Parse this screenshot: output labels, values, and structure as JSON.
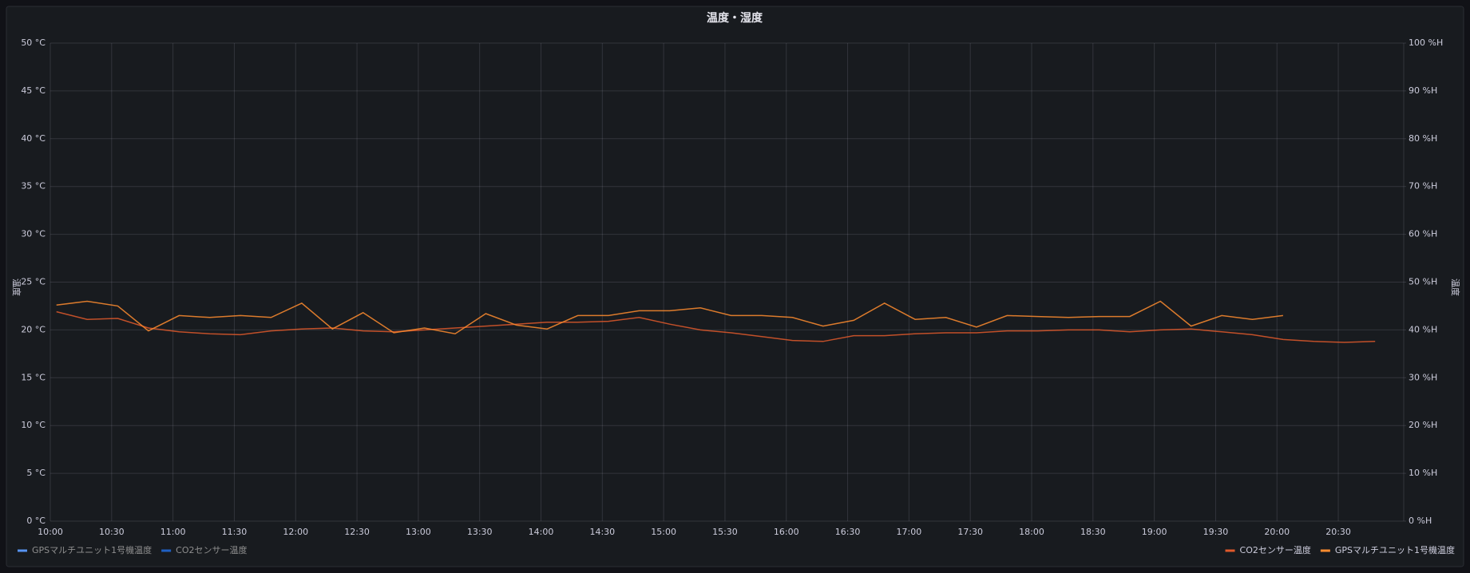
{
  "chart_data": {
    "type": "line",
    "title": "温度・湿度",
    "y_label": "温度",
    "y2_label": "温度",
    "x": [
      "10:03",
      "10:18",
      "10:33",
      "10:48",
      "11:03",
      "11:18",
      "11:33",
      "11:48",
      "12:03",
      "12:18",
      "12:33",
      "12:48",
      "13:03",
      "13:18",
      "13:33",
      "13:48",
      "14:03",
      "14:18",
      "14:33",
      "14:48",
      "15:03",
      "15:18",
      "15:33",
      "15:48",
      "16:03",
      "16:18",
      "16:33",
      "16:48",
      "17:03",
      "17:18",
      "17:33",
      "17:48",
      "18:03",
      "18:18",
      "18:33",
      "18:48",
      "19:03",
      "19:18",
      "19:33",
      "19:48",
      "20:03",
      "20:18",
      "20:33",
      "20:48"
    ],
    "xlim": [
      "10:00",
      "21:02"
    ],
    "xticks": [
      "10:00",
      "10:30",
      "11:00",
      "11:30",
      "12:00",
      "12:30",
      "13:00",
      "13:30",
      "14:00",
      "14:30",
      "15:00",
      "15:30",
      "16:00",
      "16:30",
      "17:00",
      "17:30",
      "18:00",
      "18:30",
      "19:00",
      "19:30",
      "20:00",
      "20:30"
    ],
    "ylim": [
      0,
      50
    ],
    "yticks": [
      {
        "value": 0,
        "label": "0 °C"
      },
      {
        "value": 5,
        "label": "5 °C"
      },
      {
        "value": 10,
        "label": "10 °C"
      },
      {
        "value": 15,
        "label": "15 °C"
      },
      {
        "value": 20,
        "label": "20 °C"
      },
      {
        "value": 25,
        "label": "25 °C"
      },
      {
        "value": 30,
        "label": "30 °C"
      },
      {
        "value": 35,
        "label": "35 °C"
      },
      {
        "value": 40,
        "label": "40 °C"
      },
      {
        "value": 45,
        "label": "45 °C"
      },
      {
        "value": 50,
        "label": "50 °C"
      }
    ],
    "y2lim": [
      0,
      100
    ],
    "y2ticks": [
      {
        "value": 0,
        "label": "0 %H"
      },
      {
        "value": 10,
        "label": "10 %H"
      },
      {
        "value": 20,
        "label": "20 %H"
      },
      {
        "value": 30,
        "label": "30 %H"
      },
      {
        "value": 40,
        "label": "40 %H"
      },
      {
        "value": 50,
        "label": "50 %H"
      },
      {
        "value": 60,
        "label": "60 %H"
      },
      {
        "value": 70,
        "label": "70 %H"
      },
      {
        "value": 80,
        "label": "80 %H"
      },
      {
        "value": 90,
        "label": "90 %H"
      },
      {
        "value": 100,
        "label": "100 %H"
      }
    ],
    "grid": true,
    "series": [
      {
        "name": "GPSマルチユニット1号機温度",
        "color": "#5794f2",
        "hidden": true,
        "values": [
          null,
          null,
          null,
          null,
          null,
          null,
          null,
          null,
          null,
          null,
          null,
          null,
          null,
          null,
          null,
          null,
          null,
          null,
          null,
          null,
          null,
          null,
          null,
          null,
          null,
          null,
          null,
          null,
          null,
          null,
          null,
          null,
          null,
          null,
          null,
          null,
          null,
          null,
          null,
          null,
          null,
          null,
          null,
          null
        ]
      },
      {
        "name": "CO2センサー温度",
        "color": "#1f60c4",
        "hidden": true,
        "values": [
          null,
          null,
          null,
          null,
          null,
          null,
          null,
          null,
          null,
          null,
          null,
          null,
          null,
          null,
          null,
          null,
          null,
          null,
          null,
          null,
          null,
          null,
          null,
          null,
          null,
          null,
          null,
          null,
          null,
          null,
          null,
          null,
          null,
          null,
          null,
          null,
          null,
          null,
          null,
          null,
          null,
          null,
          null,
          null
        ]
      },
      {
        "name": "CO2センサー温度",
        "color": "#e0592b",
        "hidden": false,
        "values": [
          21.9,
          21.1,
          21.2,
          20.2,
          19.8,
          19.6,
          19.5,
          19.9,
          20.1,
          20.2,
          19.9,
          19.8,
          20.0,
          20.2,
          20.4,
          20.6,
          20.8,
          20.8,
          20.9,
          21.3,
          20.6,
          20.0,
          19.7,
          19.3,
          18.9,
          18.8,
          19.4,
          19.4,
          19.6,
          19.7,
          19.7,
          19.9,
          19.9,
          20.0,
          20.0,
          19.8,
          20.0,
          20.1,
          19.8,
          19.5,
          19.0,
          18.8,
          18.7,
          18.8
        ]
      },
      {
        "name": "GPSマルチユニット1号機温度",
        "color": "#ff8c2f",
        "hidden": false,
        "values": [
          22.6,
          23.0,
          22.5,
          19.9,
          21.5,
          21.3,
          21.5,
          21.3,
          22.8,
          20.1,
          21.8,
          19.7,
          20.2,
          19.6,
          21.7,
          20.5,
          20.1,
          21.5,
          21.5,
          22.0,
          22.0,
          22.3,
          21.5,
          21.5,
          21.3,
          20.4,
          21.0,
          22.8,
          21.1,
          21.3,
          20.3,
          21.5,
          21.4,
          21.3,
          21.4,
          21.4,
          23.0,
          20.4,
          21.5,
          21.1,
          21.5,
          null,
          null,
          null
        ]
      }
    ]
  }
}
